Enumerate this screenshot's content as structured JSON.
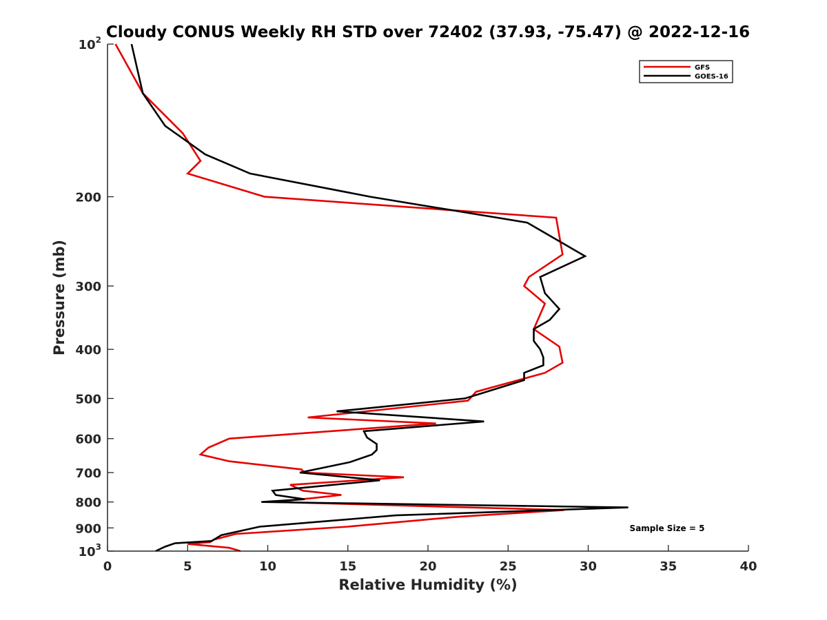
{
  "chart_data": {
    "type": "line",
    "title": "Cloudy CONUS Weekly RH STD over 72402 (37.93, -75.47) @ 2022-12-16",
    "xlabel": "Relative Humidity (%)",
    "ylabel": "Pressure (mb)",
    "xlim": [
      0,
      40
    ],
    "ylim": [
      100,
      1000
    ],
    "y_scale": "log",
    "y_reversed": true,
    "x_ticks": [
      0,
      5,
      10,
      15,
      20,
      25,
      30,
      35,
      40
    ],
    "x_tick_labels": [
      "0",
      "5",
      "10",
      "15",
      "20",
      "25",
      "30",
      "35",
      "40"
    ],
    "y_ticks": [
      {
        "value": 100,
        "base": "10",
        "exp": "2"
      },
      {
        "value": 200,
        "label": "200"
      },
      {
        "value": 300,
        "label": "300"
      },
      {
        "value": 400,
        "label": "400"
      },
      {
        "value": 500,
        "label": "500"
      },
      {
        "value": 600,
        "label": "600"
      },
      {
        "value": 700,
        "label": "700"
      },
      {
        "value": 800,
        "label": "800"
      },
      {
        "value": 900,
        "label": "900"
      },
      {
        "value": 1000,
        "base": "10",
        "exp": "3"
      }
    ],
    "grid": false,
    "legend_position": "top-right",
    "annotation": "Sample Size = 5",
    "series": [
      {
        "name": "GFS",
        "color": "#e60000",
        "points": [
          [
            0.5,
            100
          ],
          [
            2.2,
            125
          ],
          [
            4.7,
            150
          ],
          [
            5.8,
            170
          ],
          [
            5.0,
            180
          ],
          [
            9.8,
            200
          ],
          [
            28.0,
            220
          ],
          [
            28.4,
            260
          ],
          [
            26.3,
            288
          ],
          [
            26.0,
            300
          ],
          [
            27.3,
            325
          ],
          [
            26.6,
            365
          ],
          [
            28.2,
            395
          ],
          [
            28.4,
            425
          ],
          [
            27.3,
            445
          ],
          [
            23.0,
            485
          ],
          [
            22.5,
            505
          ],
          [
            12.5,
            545
          ],
          [
            20.5,
            560
          ],
          [
            7.6,
            600
          ],
          [
            6.3,
            625
          ],
          [
            5.8,
            645
          ],
          [
            7.6,
            665
          ],
          [
            12.1,
            690
          ],
          [
            12.3,
            700
          ],
          [
            18.5,
            715
          ],
          [
            11.4,
            740
          ],
          [
            12.2,
            760
          ],
          [
            14.6,
            775
          ],
          [
            13.0,
            785
          ],
          [
            10.5,
            800
          ],
          [
            28.5,
            830
          ],
          [
            22.0,
            855
          ],
          [
            15.0,
            895
          ],
          [
            8.0,
            925
          ],
          [
            6.6,
            950
          ],
          [
            6.4,
            960
          ],
          [
            5.0,
            968
          ],
          [
            7.6,
            985
          ],
          [
            8.3,
            1000
          ]
        ]
      },
      {
        "name": "GOES-16",
        "color": "#000000",
        "points": [
          [
            1.5,
            100
          ],
          [
            2.2,
            125
          ],
          [
            3.6,
            145
          ],
          [
            6.1,
            165
          ],
          [
            8.9,
            180
          ],
          [
            16.4,
            200
          ],
          [
            26.2,
            225
          ],
          [
            28.5,
            248
          ],
          [
            29.8,
            262
          ],
          [
            27.0,
            288
          ],
          [
            27.3,
            310
          ],
          [
            28.2,
            333
          ],
          [
            27.6,
            350
          ],
          [
            26.6,
            365
          ],
          [
            26.6,
            385
          ],
          [
            27.0,
            400
          ],
          [
            27.2,
            415
          ],
          [
            27.2,
            430
          ],
          [
            26.0,
            445
          ],
          [
            26.0,
            460
          ],
          [
            23.2,
            490
          ],
          [
            22.3,
            500
          ],
          [
            14.3,
            530
          ],
          [
            23.5,
            555
          ],
          [
            16.0,
            580
          ],
          [
            16.2,
            597
          ],
          [
            16.8,
            615
          ],
          [
            16.8,
            632
          ],
          [
            16.5,
            645
          ],
          [
            15.1,
            668
          ],
          [
            12.0,
            700
          ],
          [
            17.0,
            725
          ],
          [
            10.3,
            760
          ],
          [
            10.5,
            775
          ],
          [
            12.3,
            790
          ],
          [
            9.6,
            800
          ],
          [
            32.5,
            820
          ],
          [
            18.0,
            850
          ],
          [
            9.5,
            895
          ],
          [
            7.1,
            930
          ],
          [
            6.5,
            955
          ],
          [
            4.2,
            965
          ],
          [
            3.6,
            980
          ],
          [
            3.0,
            1000
          ]
        ]
      }
    ]
  }
}
